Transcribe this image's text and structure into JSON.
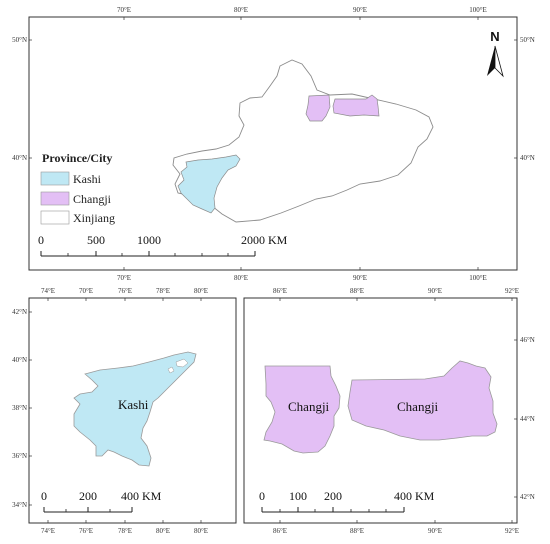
{
  "colors": {
    "kashi": "#bfe8f4",
    "changji": "#e3bff5",
    "xinjiang": "#ffffff",
    "border": "#8c8c8c",
    "frame": "#333333"
  },
  "top_map": {
    "lon_ticks": [
      "70°E",
      "80°E",
      "90°E",
      "100°E"
    ],
    "lat_ticks": [
      "50°N",
      "40°N"
    ],
    "north_arrow": {
      "label": "N",
      "icon": "north-arrow-icon"
    },
    "legend": {
      "title": "Province/City",
      "items": [
        {
          "label": "Kashi",
          "color": "#bfe8f4"
        },
        {
          "label": "Changji",
          "color": "#e3bff5"
        },
        {
          "label": "Xinjiang",
          "color": "#ffffff"
        }
      ]
    },
    "scalebar": {
      "labels": [
        "0",
        "500",
        "1000",
        "2000 KM"
      ]
    }
  },
  "kashi_map": {
    "lon_ticks": [
      "74°E",
      "76°E",
      "78°E",
      "80°E"
    ],
    "lat_ticks": [
      "42°N",
      "40°N",
      "38°N",
      "36°N",
      "34°N"
    ],
    "region_label": "Kashi",
    "scalebar": {
      "labels": [
        "0",
        "200",
        "400 KM"
      ]
    }
  },
  "changji_map": {
    "lon_ticks": [
      "86°E",
      "88°E",
      "90°E",
      "92°E"
    ],
    "lat_ticks": [
      "46°N",
      "44°N",
      "42°N"
    ],
    "region_labels": [
      "Changji",
      "Changji"
    ],
    "scalebar": {
      "labels": [
        "0",
        "100",
        "200",
        "400 KM"
      ]
    }
  }
}
